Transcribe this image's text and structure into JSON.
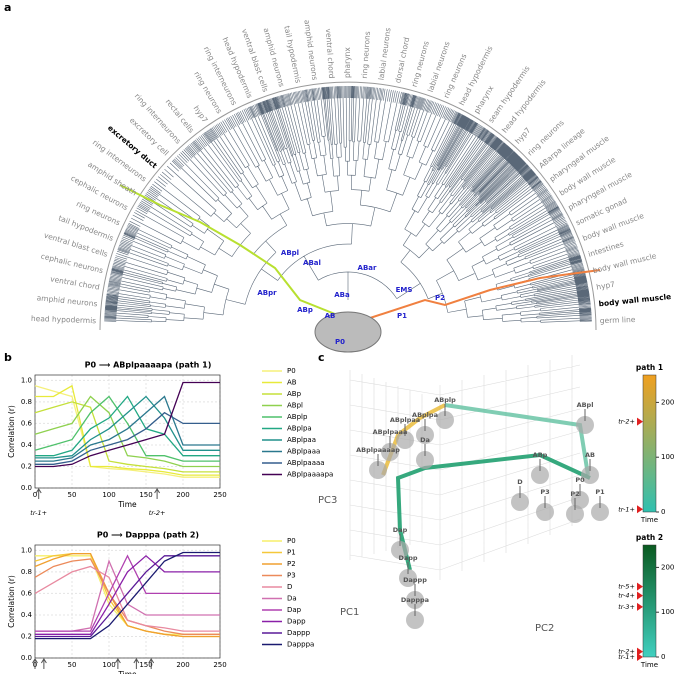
{
  "panels": {
    "a": "a",
    "b": "b",
    "c": "c"
  },
  "tree": {
    "tissue_labels": [
      {
        "text": "head hypodermis"
      },
      {
        "text": "amphid neurons"
      },
      {
        "text": "ventral chord"
      },
      {
        "text": "cephalic neurons"
      },
      {
        "text": "ventral blast cells"
      },
      {
        "text": "tail hypodermis"
      },
      {
        "text": "ring neurons"
      },
      {
        "text": "cephalic neurons"
      },
      {
        "text": "amphid sheath"
      },
      {
        "text": "ring interneurons"
      },
      {
        "text": "excretory duct",
        "highlight": true
      },
      {
        "text": "excretory cell"
      },
      {
        "text": "ring interneurons"
      },
      {
        "text": "rectal cells"
      },
      {
        "text": "hyp7"
      },
      {
        "text": "ring neurons"
      },
      {
        "text": "ring interneurons"
      },
      {
        "text": "head hypodermis"
      },
      {
        "text": "ventral blast cells"
      },
      {
        "text": "amphid neurons"
      },
      {
        "text": "tail hypodermis"
      },
      {
        "text": "amphid neurons"
      },
      {
        "text": "ventral chord"
      },
      {
        "text": "pharynx"
      },
      {
        "text": "ring neurons"
      },
      {
        "text": "labial neurons"
      },
      {
        "text": "dorsal chord"
      },
      {
        "text": "ring neurons"
      },
      {
        "text": "labial neurons"
      },
      {
        "text": "ring neurons"
      },
      {
        "text": "head hypodermis"
      },
      {
        "text": "pharynx"
      },
      {
        "text": "seam hypodermis"
      },
      {
        "text": "head hypodermis"
      },
      {
        "text": "hyp7"
      },
      {
        "text": "ring neurons"
      },
      {
        "text": "ABarpa lineage"
      },
      {
        "text": "pharyngeal muscle"
      },
      {
        "text": "body wall muscle"
      },
      {
        "text": "pharyngeal muscle"
      },
      {
        "text": "somatic gonad"
      },
      {
        "text": "body wall muscle"
      },
      {
        "text": "intestines"
      },
      {
        "text": "body wall muscle"
      },
      {
        "text": "hyp7"
      },
      {
        "text": "body wall muscle",
        "highlight": true
      },
      {
        "text": "germ line"
      }
    ],
    "node_labels": [
      "P0",
      "AB",
      "ABa",
      "ABp",
      "ABal",
      "ABar",
      "ABpl",
      "ABpr",
      "P1",
      "EMS",
      "P2"
    ]
  },
  "chart_data": [
    {
      "type": "line",
      "title": "P0 ⟶ ABplpaaaapa (path 1)",
      "x_label": "Time",
      "y_label": "Correlation (r)",
      "x": [
        0,
        25,
        50,
        75,
        100,
        125,
        150,
        175,
        200,
        225,
        250
      ],
      "xlim": [
        0,
        250
      ],
      "xticks": [
        0,
        50,
        100,
        150,
        200,
        250
      ],
      "ylim": [
        0,
        1.05
      ],
      "yticks": [
        {
          "value": 0,
          "label": "0.0"
        },
        0.2,
        0.4,
        0.6,
        0.8,
        {
          "value": 1,
          "label": "1.0"
        }
      ],
      "grid": true,
      "annotations": [
        {
          "text": "tr-1+",
          "x": 5
        },
        {
          "text": "tr-2+",
          "x": 165
        }
      ],
      "series": [
        {
          "name": "P0",
          "color": "#f5f07a",
          "values": [
            0.95,
            0.9,
            0.85,
            0.2,
            0.18,
            0.17,
            0.15,
            0.13,
            0.1,
            0.1,
            0.1
          ]
        },
        {
          "name": "AB",
          "color": "#e8ea3a",
          "values": [
            0.85,
            0.85,
            0.95,
            0.2,
            0.2,
            0.18,
            0.17,
            0.15,
            0.12,
            0.12,
            0.12
          ]
        },
        {
          "name": "ABp",
          "color": "#c5e03a",
          "values": [
            0.7,
            0.75,
            0.8,
            0.75,
            0.25,
            0.22,
            0.2,
            0.18,
            0.15,
            0.15,
            0.15
          ]
        },
        {
          "name": "ABpl",
          "color": "#8fd14f",
          "values": [
            0.5,
            0.55,
            0.6,
            0.85,
            0.7,
            0.3,
            0.28,
            0.25,
            0.2,
            0.2,
            0.2
          ]
        },
        {
          "name": "ABplp",
          "color": "#4fc16b",
          "values": [
            0.35,
            0.4,
            0.45,
            0.7,
            0.85,
            0.6,
            0.3,
            0.3,
            0.25,
            0.25,
            0.25
          ]
        },
        {
          "name": "ABplpa",
          "color": "#22a884",
          "values": [
            0.3,
            0.3,
            0.35,
            0.55,
            0.65,
            0.85,
            0.55,
            0.5,
            0.3,
            0.3,
            0.3
          ]
        },
        {
          "name": "ABplpaa",
          "color": "#21918c",
          "values": [
            0.28,
            0.28,
            0.3,
            0.45,
            0.55,
            0.7,
            0.85,
            0.65,
            0.35,
            0.35,
            0.35
          ]
        },
        {
          "name": "ABplpaaa",
          "color": "#2a788e",
          "values": [
            0.25,
            0.25,
            0.28,
            0.4,
            0.45,
            0.55,
            0.7,
            0.85,
            0.4,
            0.4,
            0.4
          ]
        },
        {
          "name": "ABplpaaaa",
          "color": "#355f8d",
          "values": [
            0.22,
            0.22,
            0.25,
            0.35,
            0.4,
            0.45,
            0.55,
            0.7,
            0.6,
            0.6,
            0.6
          ]
        },
        {
          "name": "ABplpaaaapa",
          "color": "#440154",
          "values": [
            0.2,
            0.2,
            0.22,
            0.3,
            0.35,
            0.4,
            0.45,
            0.5,
            0.98,
            0.98,
            0.98
          ]
        }
      ]
    },
    {
      "type": "line",
      "title": "P0 ⟶ Dapppa (path 2)",
      "x_label": "Time",
      "y_label": "Correlation (r)",
      "x": [
        0,
        25,
        50,
        75,
        100,
        125,
        150,
        175,
        200,
        225,
        250
      ],
      "xlim": [
        0,
        250
      ],
      "xticks": [
        0,
        50,
        100,
        150,
        200,
        250
      ],
      "ylim": [
        0,
        1.05
      ],
      "yticks": [
        {
          "value": 0,
          "label": "0.0"
        },
        0.2,
        0.4,
        0.6,
        0.8,
        {
          "value": 1,
          "label": "1.0"
        }
      ],
      "grid": true,
      "annotations": [
        {
          "text": "tr-1+",
          "x": 0
        },
        {
          "text": "tr-2+",
          "x": 12
        },
        {
          "text": "tr-3+",
          "x": 112
        },
        {
          "text": "tr-4+",
          "x": 137
        },
        {
          "text": "tr-5+",
          "x": 157
        }
      ],
      "series": [
        {
          "name": "P0",
          "color": "#f7ef6a",
          "values": [
            0.95,
            0.95,
            0.95,
            0.95,
            0.5,
            0.3,
            0.25,
            0.22,
            0.22,
            0.22,
            0.22
          ]
        },
        {
          "name": "P1",
          "color": "#f5c83a",
          "values": [
            0.9,
            0.95,
            0.97,
            0.97,
            0.55,
            0.3,
            0.25,
            0.22,
            0.2,
            0.2,
            0.2
          ]
        },
        {
          "name": "P2",
          "color": "#f0a030",
          "values": [
            0.85,
            0.92,
            0.97,
            0.97,
            0.6,
            0.3,
            0.25,
            0.22,
            0.2,
            0.2,
            0.2
          ]
        },
        {
          "name": "P3",
          "color": "#ec8a5a",
          "values": [
            0.75,
            0.85,
            0.9,
            0.92,
            0.6,
            0.35,
            0.3,
            0.25,
            0.22,
            0.22,
            0.22
          ]
        },
        {
          "name": "D",
          "color": "#e88aa0",
          "values": [
            0.6,
            0.7,
            0.8,
            0.85,
            0.75,
            0.35,
            0.3,
            0.28,
            0.25,
            0.25,
            0.25
          ]
        },
        {
          "name": "Da",
          "color": "#d070b0",
          "values": [
            0.25,
            0.25,
            0.25,
            0.28,
            0.9,
            0.5,
            0.4,
            0.4,
            0.4,
            0.4,
            0.4
          ]
        },
        {
          "name": "Dap",
          "color": "#b040b0",
          "values": [
            0.25,
            0.25,
            0.25,
            0.25,
            0.6,
            0.95,
            0.6,
            0.6,
            0.6,
            0.6,
            0.6
          ]
        },
        {
          "name": "Dapp",
          "color": "#8a20a8",
          "values": [
            0.22,
            0.22,
            0.22,
            0.22,
            0.5,
            0.8,
            0.95,
            0.8,
            0.8,
            0.8,
            0.8
          ]
        },
        {
          "name": "Dappp",
          "color": "#5a1a98",
          "values": [
            0.2,
            0.2,
            0.2,
            0.2,
            0.4,
            0.6,
            0.8,
            0.95,
            0.95,
            0.95,
            0.95
          ]
        },
        {
          "name": "Dapppa",
          "color": "#1a1a70",
          "values": [
            0.18,
            0.18,
            0.18,
            0.18,
            0.3,
            0.5,
            0.7,
            0.9,
            0.98,
            0.98,
            0.98
          ]
        }
      ]
    }
  ],
  "pca": {
    "axis_labels": {
      "pc1": "PC1",
      "pc2": "PC2",
      "pc3": "PC3"
    },
    "nodes": [
      "ABplp",
      "ABpl",
      "ABplpa",
      "ABplpaa",
      "ABplpaaa",
      "ABplpaaaap",
      "Da",
      "ABp",
      "AB",
      "P0",
      "D",
      "P3",
      "P2",
      "P1",
      "Dap",
      "Dapp",
      "Dappp",
      "Dapppa"
    ],
    "colorbars": [
      {
        "title": "path 1",
        "label": "Time",
        "lim": [
          0,
          250
        ],
        "ticks": [
          0,
          100,
          200
        ],
        "colors": [
          "#30c0b0",
          "#f0a020"
        ],
        "markers": [
          {
            "text": "tr-2+",
            "value": 165
          },
          {
            "text": "tr-1+",
            "value": 5
          }
        ]
      },
      {
        "title": "path 2",
        "label": "Time",
        "lim": [
          0,
          250
        ],
        "ticks": [
          0,
          100,
          200
        ],
        "colors": [
          "#40d0c0",
          "#0a5a20"
        ],
        "markers": [
          {
            "text": "tr-5+",
            "value": 157
          },
          {
            "text": "tr-4+",
            "value": 137
          },
          {
            "text": "tr-3+",
            "value": 112
          },
          {
            "text": "tr-2+",
            "value": 12
          },
          {
            "text": "tr-1+",
            "value": 0
          }
        ]
      }
    ]
  }
}
